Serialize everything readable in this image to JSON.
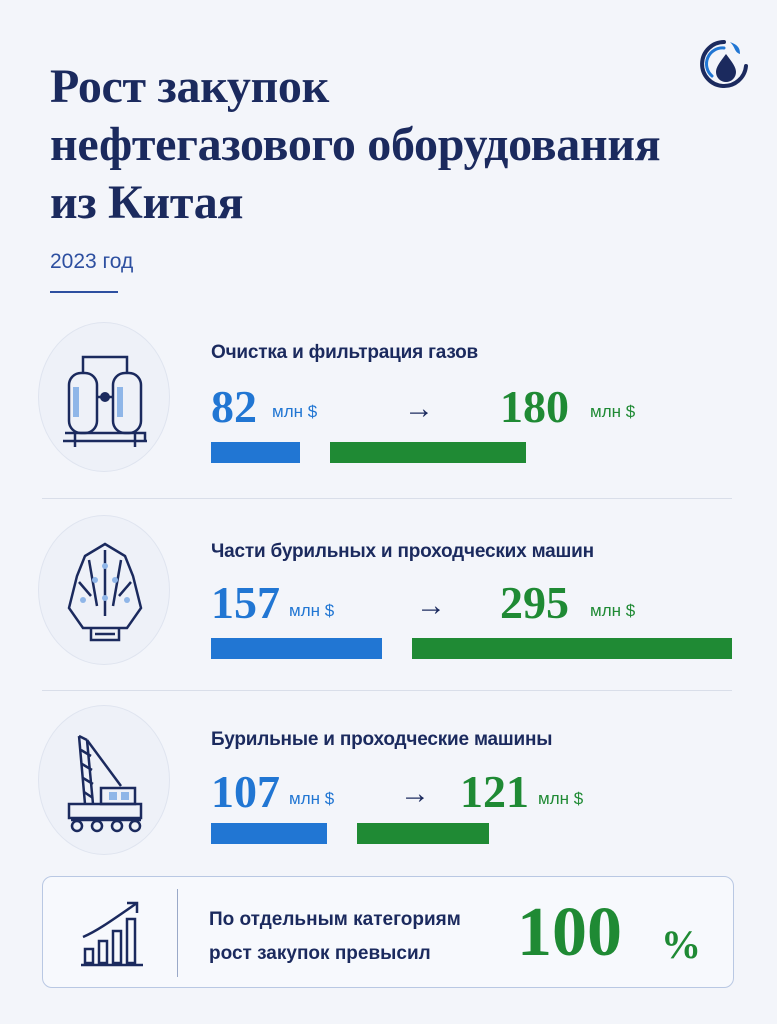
{
  "header": {
    "title_lines": [
      "Рост закупок",
      "нефтегазового оборудования",
      "из Китая"
    ],
    "subtitle": "2023 год",
    "logo_icon": "flame-drop-logo-icon"
  },
  "colors": {
    "navy": "#1b2a5e",
    "blue": "#2176d3",
    "green": "#1f8a34",
    "background": "#f3f5fa"
  },
  "chart_data": {
    "type": "bar",
    "unit": "млн $",
    "categories": [
      "Очистка и фильтрация газов",
      "Части бурильных и проходческих машин",
      "Бурильные и проходческие машины"
    ],
    "series": [
      {
        "values": [
          82,
          157,
          107
        ]
      },
      {
        "values": [
          180,
          295,
          121
        ]
      }
    ],
    "arrow": "→",
    "icons": [
      "gas-filter-icon",
      "drill-bit-icon",
      "drilling-rig-icon"
    ]
  },
  "rows": [
    {
      "label": "Очистка и фильтрация газов",
      "before": "82",
      "after": "180",
      "unit": "млн $",
      "arrow": "→"
    },
    {
      "label": "Части бурильных и проходческих машин",
      "before": "157",
      "after": "295",
      "unit": "млн $",
      "arrow": "→"
    },
    {
      "label": "Бурильные и проходческие машины",
      "before": "107",
      "after": "121",
      "unit": "млн $",
      "arrow": "→"
    }
  ],
  "summary": {
    "text_line1": "По отдельным категориям",
    "text_line2": "рост закупок превысил",
    "value": "100",
    "unit": "%",
    "icon": "growth-chart-icon"
  }
}
